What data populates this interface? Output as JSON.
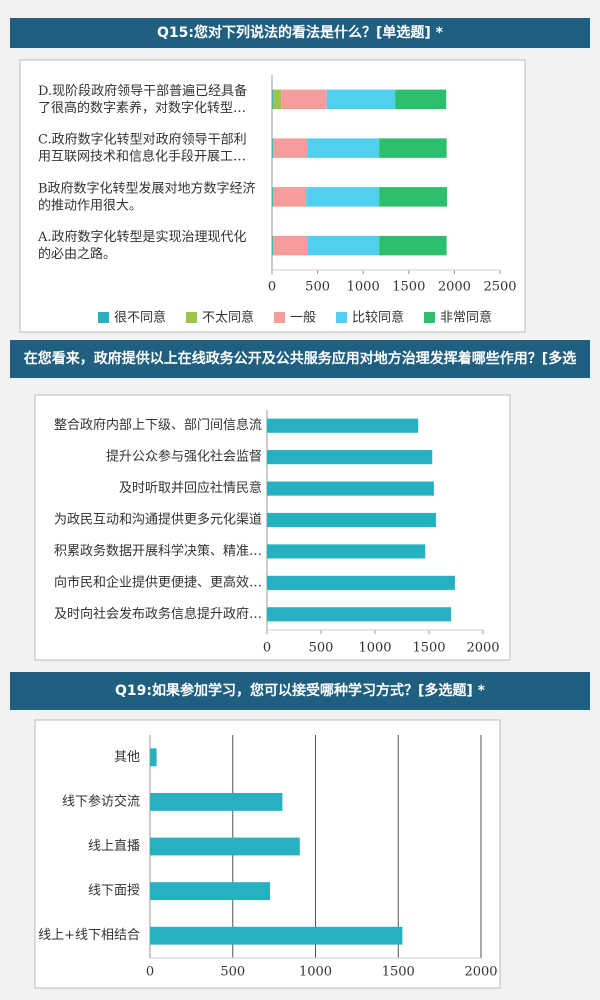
{
  "chart_data": [
    {
      "type": "bar",
      "orientation": "horizontal",
      "stacked": true,
      "title": "Q15:您对下列说法的看法是什么？[单选题] *",
      "categories": [
        "D.现阶段政府领导干部普遍已经具备了很高的数字素养，对数字化转型…",
        "C.政府数字化转型对政府领导干部利用互联网技术和信息化手段开展工…",
        "B政府数字化转型发展对地方数字经济的推动作用很大。",
        "A.政府数字化转型是实现治理现代化的必由之路。"
      ],
      "series": [
        {
          "name": "很不同意",
          "color": "#26b1c1",
          "values": [
            10,
            10,
            10,
            10
          ]
        },
        {
          "name": "不太同意",
          "color": "#9cc34b",
          "values": [
            90,
            5,
            5,
            5
          ]
        },
        {
          "name": "一般",
          "color": "#f59d9d",
          "values": [
            500,
            370,
            360,
            370
          ]
        },
        {
          "name": "比较同意",
          "color": "#50d0ee",
          "values": [
            750,
            790,
            800,
            790
          ]
        },
        {
          "name": "非常同意",
          "color": "#2dbf6e",
          "values": [
            560,
            740,
            745,
            740
          ]
        }
      ],
      "xlim": [
        0,
        2500
      ],
      "xticks": [
        0,
        500,
        1000,
        1500,
        2000,
        2500
      ],
      "grid": false,
      "legend": "bottom"
    },
    {
      "type": "bar",
      "orientation": "horizontal",
      "title": "在您看来，政府提供以上在线政务公开及公共服务应用对地方治理发挥着哪些作用？[多选",
      "categories": [
        "整合政府内部上下级、部门间信息流",
        "提升公众参与强化社会监督",
        "及时听取并回应社情民意",
        "为政民互动和沟通提供更多元化渠道",
        "积累政务数据开展科学决策、精准…",
        "向市民和企业提供更便捷、更高效…",
        "及时向社会发布政务信息提升政府…"
      ],
      "values": [
        1400,
        1530,
        1545,
        1565,
        1465,
        1740,
        1705
      ],
      "color": "#26b1c1",
      "xlim": [
        0,
        2000
      ],
      "xticks": [
        0,
        500,
        1000,
        1500,
        2000
      ],
      "grid": false
    },
    {
      "type": "bar",
      "orientation": "horizontal",
      "title": "Q19:如果参加学习，您可以接受哪种学习方式？[多选题] *",
      "categories": [
        "其他",
        "线下参访交流",
        "线上直播",
        "线下面授",
        "线上+线下相结合"
      ],
      "values": [
        40,
        800,
        905,
        725,
        1525
      ],
      "color": "#26b1c1",
      "xlim": [
        0,
        2000
      ],
      "xticks": [
        0,
        500,
        1000,
        1500,
        2000
      ],
      "grid": true
    }
  ]
}
